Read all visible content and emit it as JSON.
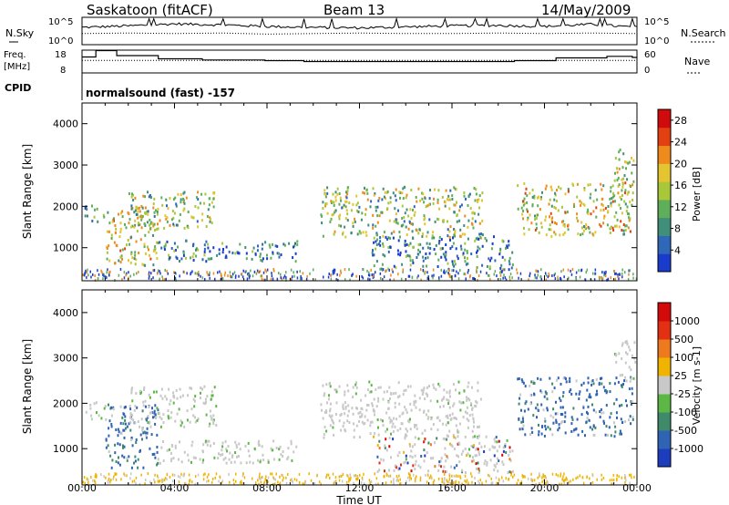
{
  "header": {
    "station": "Saskatoon (fitACF)",
    "beam": "Beam 13",
    "date": "14/May/2009"
  },
  "noise_panel": {
    "left_label": "N.Sky",
    "right_label": "N.Search",
    "left_ticks": [
      "10^5",
      "10^0"
    ],
    "right_ticks": [
      "10^5",
      "10^0"
    ]
  },
  "freq_panel": {
    "left_label_line1": "Freq.",
    "left_label_line2": "[MHz]",
    "right_label": "Nave",
    "left_ticks": [
      "18",
      "8"
    ],
    "right_ticks": [
      "60",
      "0"
    ]
  },
  "cpid": {
    "label": "CPID",
    "text": "normalsound (fast) -157"
  },
  "chart_data": [
    {
      "type": "line",
      "name": "noise",
      "x": [
        "00:00",
        "02:00",
        "04:00",
        "06:00",
        "08:00",
        "10:00",
        "12:00",
        "14:00",
        "16:00",
        "18:00",
        "20:00",
        "22:00",
        "24:00"
      ],
      "series": [
        {
          "name": "N.Sky",
          "values": [
            3.2,
            3.5,
            3.9,
            3.7,
            3.4,
            3.2,
            3.1,
            3.3,
            3.5,
            3.6,
            3.4,
            3.8,
            3.2
          ]
        },
        {
          "name": "N.Search",
          "values": [
            2.0,
            2.1,
            2.0,
            2.1,
            1.9,
            2.0,
            2.1,
            2.0,
            2.0,
            2.1,
            2.0,
            2.1,
            2.0
          ]
        }
      ],
      "scale": "log"
    },
    {
      "type": "line",
      "name": "frequency",
      "steps": [
        {
          "t": 0.0,
          "freq": 15.0
        },
        {
          "t": 0.6,
          "freq": 17.8
        },
        {
          "t": 1.5,
          "freq": 15.6
        },
        {
          "t": 3.3,
          "freq": 14.2
        },
        {
          "t": 5.2,
          "freq": 13.7
        },
        {
          "t": 7.9,
          "freq": 13.4
        },
        {
          "t": 9.6,
          "freq": 13.0
        },
        {
          "t": 18.7,
          "freq": 13.4
        },
        {
          "t": 20.5,
          "freq": 14.6
        },
        {
          "t": 22.7,
          "freq": 15.3
        },
        {
          "t": 23.8,
          "freq": 14.8
        }
      ],
      "nave_mean": 33,
      "ylim": [
        8,
        18
      ]
    },
    {
      "type": "heatmap",
      "name": "power",
      "xlabel": "Time UT",
      "ylabel": "Slant Range [km]",
      "xlim": [
        0,
        24
      ],
      "ylim": [
        200,
        4500
      ],
      "x_ticks": [
        "00:00",
        "04:00",
        "08:00",
        "12:00",
        "16:00",
        "20:00",
        "00:00"
      ],
      "y_ticks": [
        "1000",
        "2000",
        "3000",
        "4000"
      ],
      "colorbar": {
        "label": "Power [dB]",
        "range": [
          0,
          30
        ],
        "ticks": [
          "4",
          "8",
          "12",
          "16",
          "20",
          "24",
          "28"
        ],
        "colors": [
          "#1a3ccd",
          "#2f68b8",
          "#3f8f7a",
          "#5fae5a",
          "#a8c83a",
          "#e4c430",
          "#ef8a1c",
          "#e34012",
          "#d10b0b"
        ]
      },
      "echo_regions": [
        {
          "t0": 0.1,
          "t1": 1.0,
          "r0": 1650,
          "r1": 2050,
          "p": 12
        },
        {
          "t0": 1.0,
          "t1": 3.3,
          "r0": 600,
          "r1": 2000,
          "p": 18
        },
        {
          "t0": 2.0,
          "t1": 5.8,
          "r0": 1500,
          "r1": 2400,
          "p": 14
        },
        {
          "t0": 3.3,
          "t1": 9.3,
          "r0": 700,
          "r1": 1200,
          "p": 8
        },
        {
          "t0": 10.3,
          "t1": 17.3,
          "r0": 1250,
          "r1": 2500,
          "p": 13
        },
        {
          "t0": 12.5,
          "t1": 18.6,
          "r0": 500,
          "r1": 1300,
          "p": 6
        },
        {
          "t0": 18.8,
          "t1": 23.8,
          "r0": 1300,
          "r1": 2600,
          "p": 16
        },
        {
          "t0": 23.0,
          "t1": 23.9,
          "r0": 2500,
          "r1": 3400,
          "p": 18
        }
      ]
    },
    {
      "type": "heatmap",
      "name": "velocity",
      "xlabel": "Time UT",
      "ylabel": "Slant Range [km]",
      "xlim": [
        0,
        24
      ],
      "ylim": [
        200,
        4500
      ],
      "x_ticks": [
        "00:00",
        "04:00",
        "08:00",
        "12:00",
        "16:00",
        "20:00",
        "00:00"
      ],
      "y_ticks": [
        "1000",
        "2000",
        "3000",
        "4000"
      ],
      "colorbar": {
        "label": "Velocity [m s-1]",
        "ticks": [
          "1000",
          "500",
          "100",
          "25",
          "-25",
          "-100",
          "-500",
          "-1000"
        ],
        "colors": [
          "#1e3cbe",
          "#2f63b4",
          "#3f8a6a",
          "#5bb845",
          "#c8c8c8",
          "#f0b400",
          "#ef7a1e",
          "#e33012",
          "#d40a0a"
        ]
      },
      "echo_regions": [
        {
          "t0": 0.1,
          "t1": 1.0,
          "r0": 1650,
          "r1": 2050,
          "v": "grey"
        },
        {
          "t0": 1.0,
          "t1": 3.3,
          "r0": 600,
          "r1": 2000,
          "v": "blue"
        },
        {
          "t0": 2.0,
          "t1": 5.8,
          "r0": 1500,
          "r1": 2400,
          "v": "grey"
        },
        {
          "t0": 3.3,
          "t1": 9.3,
          "r0": 700,
          "r1": 1200,
          "v": "grey"
        },
        {
          "t0": 10.3,
          "t1": 17.3,
          "r0": 1250,
          "r1": 2500,
          "v": "grey"
        },
        {
          "t0": 12.5,
          "t1": 18.6,
          "r0": 500,
          "r1": 1300,
          "v": "mixed"
        },
        {
          "t0": 18.8,
          "t1": 23.8,
          "r0": 1300,
          "r1": 2600,
          "v": "blue"
        },
        {
          "t0": 23.0,
          "t1": 23.9,
          "r0": 2500,
          "r1": 3400,
          "v": "grey"
        }
      ]
    }
  ]
}
